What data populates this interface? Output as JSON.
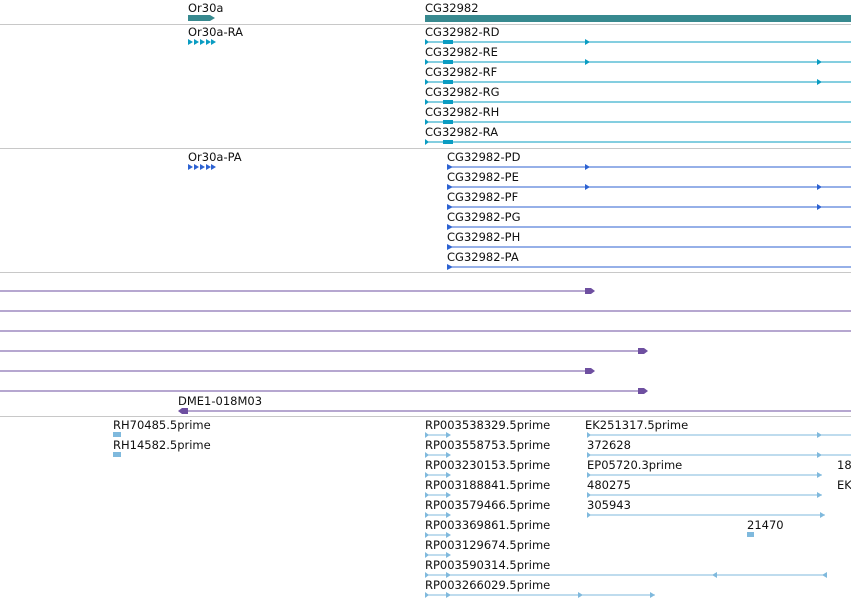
{
  "colors": {
    "gene": "#37898f",
    "transcript": "#0a9cc2",
    "protein": "#2c62d2",
    "alignment": "#6e4fa0",
    "est": "#7fb9dd",
    "separator": "#c8c8c8"
  },
  "gene_track": {
    "genes": [
      {
        "name": "Or30a",
        "strand": "+"
      },
      {
        "name": "CG32982",
        "strand": "+"
      }
    ]
  },
  "transcript_track": {
    "transcripts": [
      "Or30a-RA",
      "CG32982-RD",
      "CG32982-RE",
      "CG32982-RF",
      "CG32982-RG",
      "CG32982-RH",
      "CG32982-RA"
    ]
  },
  "protein_track": {
    "proteins": [
      "Or30a-PA",
      "CG32982-PD",
      "CG32982-PE",
      "CG32982-PF",
      "CG32982-PG",
      "CG32982-PH",
      "CG32982-PA"
    ]
  },
  "alignment_track": {
    "features": [
      "DME1-018M03"
    ]
  },
  "est_track": {
    "features": [
      "RH70485.5prime",
      "RH14582.5prime",
      "RP003538329.5prime",
      "RP003558753.5prime",
      "RP003230153.5prime",
      "RP003188841.5prime",
      "RP003579466.5prime",
      "RP003369861.5prime",
      "RP003129674.5prime",
      "RP003590314.5prime",
      "RP003266029.5prime",
      "EK251317.5prime",
      "372628",
      "EP05720.3prime",
      "480275",
      "305943",
      "21470",
      "18",
      "EK"
    ]
  }
}
